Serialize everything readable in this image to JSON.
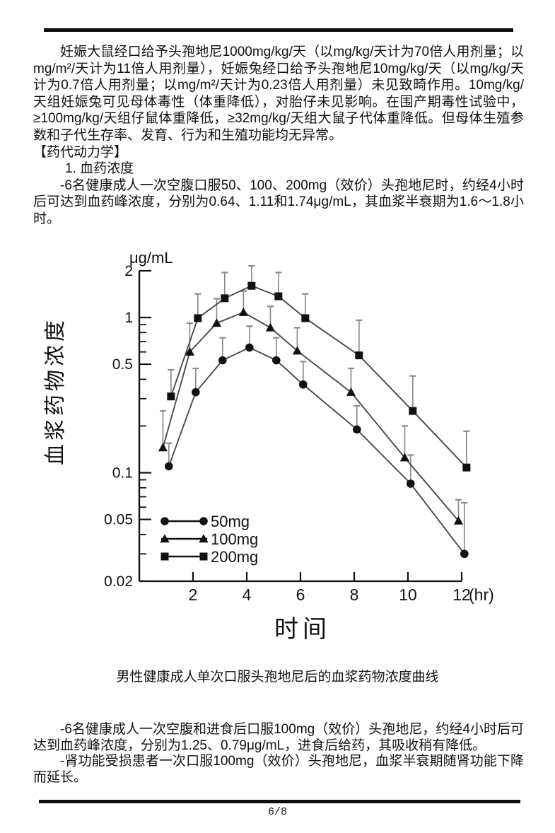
{
  "page": {
    "footer": "6/8"
  },
  "paragraphs": {
    "p1": "妊娠大鼠经口给予头孢地尼1000mg/kg/天（以mg/kg/天计为70倍人用剂量；以mg/m²/天计为11倍人用剂量），妊娠兔经口给予头孢地尼10mg/kg/天（以mg/kg/天计为0.7倍人用剂量；以mg/m²/天计为0.23倍人用剂量）未见致畸作用。10mg/kg/天组妊娠兔可见母体毒性（体重降低），对胎仔未见影响。在围产期毒性试验中，≥100mg/kg/天组仔鼠体重降低，≥32mg/kg/天组大鼠子代体重降低。但母体生殖参数和子代生存率、发育、行为和生殖功能均无异常。",
    "heading_pk": "【药代动力学】",
    "item1": "1. 血药浓度",
    "p2": "-6名健康成人一次空腹口服50、100、200mg（效价）头孢地尼时，约经4小时后可达到血药峰浓度，分别为0.64、1.11和1.74μg/mL，其血浆半衰期为1.6～1.8小时。",
    "p3": "-6名健康成人一次空腹和进食后口服100mg（效价）头孢地尼，约经4小时后可达到血药峰浓度，分别为1.25、0.79μg/mL，进食后给药，其吸收稍有降低。",
    "p4": "-肾功能受损患者一次口服100mg（效价）头孢地尼，血浆半衰期随肾功能下降而延长。"
  },
  "chart_data": {
    "type": "line",
    "caption": "男性健康成人单次口服头孢地尼后的血浆药物浓度曲线",
    "y_unit_label": "μg/mL",
    "ylabel": "血浆药物浓度",
    "xlabel": "时间",
    "x_unit": "(hr)",
    "y_scale": "log",
    "ylim": [
      0.02,
      2
    ],
    "xlim": [
      0,
      12
    ],
    "grid": false,
    "legend_position": "lower-left-inside",
    "x": [
      1,
      2,
      3,
      4,
      5,
      6,
      8,
      10,
      12
    ],
    "x_ticks": [
      2,
      4,
      6,
      8,
      10,
      12
    ],
    "y_ticks": [
      2,
      1,
      0.5,
      0.1,
      0.05,
      0.02
    ],
    "y_tick_labels": [
      "2",
      "1",
      "0.5",
      "0.1",
      "0.05",
      "0.02"
    ],
    "y_minor_ticks": [
      0.9,
      0.8,
      0.7,
      0.6,
      0.4,
      0.3,
      0.2,
      0.09,
      0.08,
      0.07,
      0.06,
      0.04,
      0.03
    ],
    "series": [
      {
        "name": "50mg",
        "marker": "circle",
        "x_offset_hr": 0.1,
        "values": [
          0.11,
          0.33,
          0.53,
          0.64,
          0.53,
          0.37,
          0.19,
          0.085,
          0.03
        ],
        "err_top": [
          0.155,
          0.47,
          0.74,
          0.88,
          0.74,
          0.52,
          0.27,
          0.13,
          0.064
        ]
      },
      {
        "name": "100mg",
        "marker": "triangle",
        "x_offset_hr": -0.12,
        "values": [
          0.145,
          0.6,
          0.92,
          1.08,
          0.86,
          0.61,
          0.33,
          0.125,
          0.049
        ],
        "err_top": [
          0.25,
          0.92,
          1.32,
          1.48,
          1.18,
          0.86,
          0.47,
          0.2,
          0.067
        ]
      },
      {
        "name": "200mg",
        "marker": "square",
        "x_offset_hr": 0.18,
        "values": [
          0.31,
          0.99,
          1.33,
          1.6,
          1.37,
          0.99,
          0.57,
          0.25,
          0.108
        ],
        "err_top": [
          0.46,
          1.42,
          1.95,
          2.15,
          1.95,
          1.42,
          0.96,
          0.42,
          0.185
        ]
      }
    ],
    "colors": {
      "axis": "#111111",
      "line": "#4a4a4a",
      "marker": "#111111",
      "error_bar": "#8c8c8c",
      "text": "#111111"
    }
  }
}
